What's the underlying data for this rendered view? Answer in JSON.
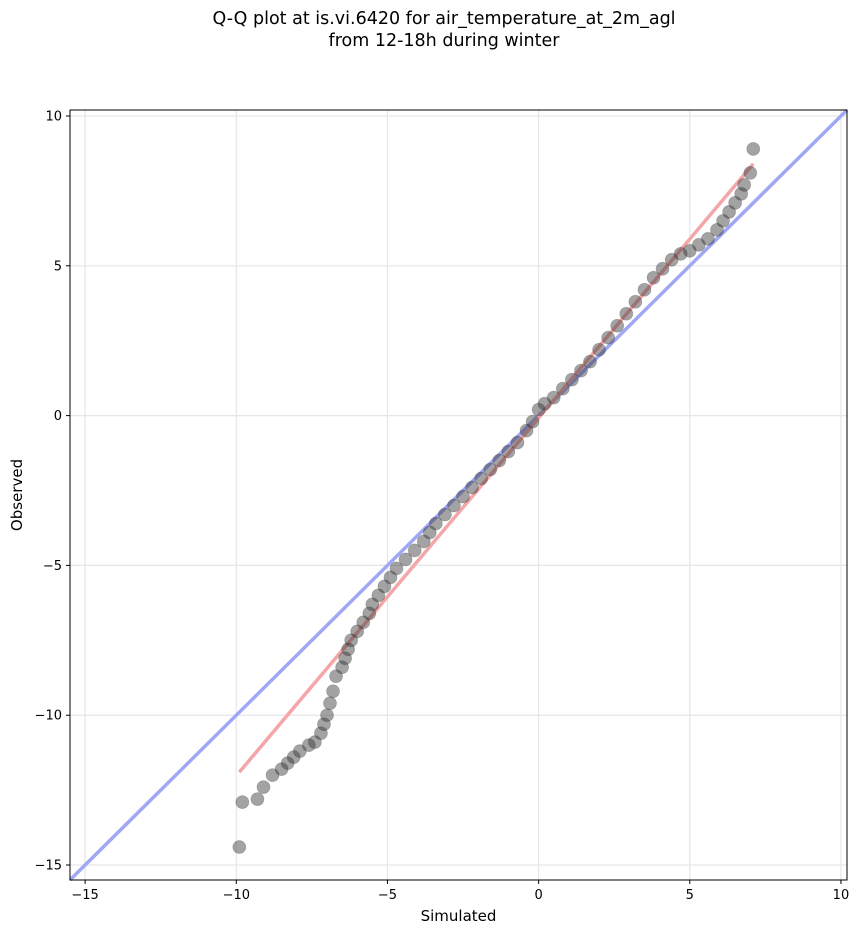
{
  "chart_data": {
    "type": "scatter",
    "title_line1": "Q-Q plot at is.vi.6420 for air_temperature_at_2m_agl",
    "title_line2": "from 12-18h during winter",
    "xlabel": "Simulated",
    "ylabel": "Observed",
    "xlim": [
      -15.5,
      10.2
    ],
    "ylim": [
      -15.5,
      10.2
    ],
    "x_ticks": [
      -15,
      -10,
      -5,
      0,
      5,
      10
    ],
    "y_ticks": [
      -15,
      -10,
      -5,
      0,
      5,
      10
    ],
    "x_tick_labels": [
      "−15",
      "−10",
      "−5",
      "0",
      "5",
      "10"
    ],
    "y_tick_labels": [
      "−15",
      "−10",
      "−5",
      "0",
      "5",
      "10"
    ],
    "grid": true,
    "identity_line": {
      "color": "#a0a8f5",
      "x": [
        -15.5,
        10.2
      ],
      "y": [
        -15.5,
        10.2
      ]
    },
    "fit_line": {
      "color": "#f4a6a8",
      "x": [
        -9.9,
        7.1
      ],
      "y": [
        -11.9,
        8.4
      ]
    },
    "point_color": "#333333",
    "points": [
      [
        -9.9,
        -14.4
      ],
      [
        -9.8,
        -12.9
      ],
      [
        -9.3,
        -12.8
      ],
      [
        -9.1,
        -12.4
      ],
      [
        -8.8,
        -12.0
      ],
      [
        -8.5,
        -11.8
      ],
      [
        -8.3,
        -11.6
      ],
      [
        -8.1,
        -11.4
      ],
      [
        -7.9,
        -11.2
      ],
      [
        -7.6,
        -11.0
      ],
      [
        -7.4,
        -10.9
      ],
      [
        -7.2,
        -10.6
      ],
      [
        -7.1,
        -10.3
      ],
      [
        -7.0,
        -10.0
      ],
      [
        -6.9,
        -9.6
      ],
      [
        -6.8,
        -9.2
      ],
      [
        -6.7,
        -8.7
      ],
      [
        -6.5,
        -8.4
      ],
      [
        -6.4,
        -8.1
      ],
      [
        -6.3,
        -7.8
      ],
      [
        -6.2,
        -7.5
      ],
      [
        -6.0,
        -7.2
      ],
      [
        -5.8,
        -6.9
      ],
      [
        -5.6,
        -6.6
      ],
      [
        -5.5,
        -6.3
      ],
      [
        -5.3,
        -6.0
      ],
      [
        -5.1,
        -5.7
      ],
      [
        -4.9,
        -5.4
      ],
      [
        -4.7,
        -5.1
      ],
      [
        -4.4,
        -4.8
      ],
      [
        -4.1,
        -4.5
      ],
      [
        -3.8,
        -4.2
      ],
      [
        -3.6,
        -3.9
      ],
      [
        -3.4,
        -3.6
      ],
      [
        -3.1,
        -3.3
      ],
      [
        -2.8,
        -3.0
      ],
      [
        -2.5,
        -2.7
      ],
      [
        -2.2,
        -2.4
      ],
      [
        -1.9,
        -2.1
      ],
      [
        -1.6,
        -1.8
      ],
      [
        -1.3,
        -1.5
      ],
      [
        -1.0,
        -1.2
      ],
      [
        -0.7,
        -0.9
      ],
      [
        -0.4,
        -0.5
      ],
      [
        -0.2,
        -0.2
      ],
      [
        0.0,
        0.2
      ],
      [
        0.2,
        0.4
      ],
      [
        0.5,
        0.6
      ],
      [
        0.8,
        0.9
      ],
      [
        1.1,
        1.2
      ],
      [
        1.4,
        1.5
      ],
      [
        1.7,
        1.8
      ],
      [
        2.0,
        2.2
      ],
      [
        2.3,
        2.6
      ],
      [
        2.6,
        3.0
      ],
      [
        2.9,
        3.4
      ],
      [
        3.2,
        3.8
      ],
      [
        3.5,
        4.2
      ],
      [
        3.8,
        4.6
      ],
      [
        4.1,
        4.9
      ],
      [
        4.4,
        5.2
      ],
      [
        4.7,
        5.4
      ],
      [
        5.0,
        5.5
      ],
      [
        5.3,
        5.7
      ],
      [
        5.6,
        5.9
      ],
      [
        5.9,
        6.2
      ],
      [
        6.1,
        6.5
      ],
      [
        6.3,
        6.8
      ],
      [
        6.5,
        7.1
      ],
      [
        6.7,
        7.4
      ],
      [
        6.8,
        7.7
      ],
      [
        7.0,
        8.1
      ],
      [
        7.1,
        8.9
      ]
    ]
  }
}
